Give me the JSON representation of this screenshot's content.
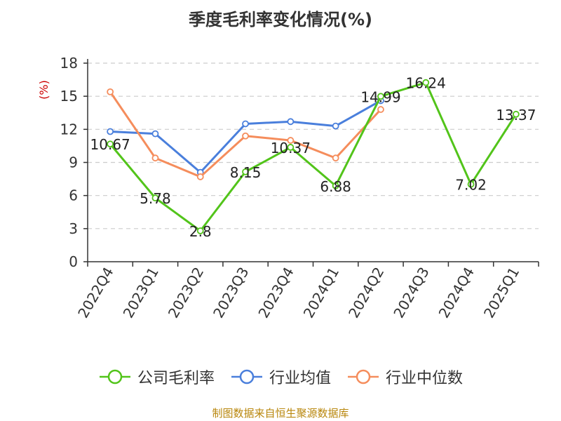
{
  "chart_data": {
    "type": "line",
    "title": "季度毛利率变化情况(%)",
    "ylabel": "(%)",
    "xlabel": "",
    "categories": [
      "2022Q4",
      "2023Q1",
      "2023Q2",
      "2023Q3",
      "2023Q4",
      "2024Q1",
      "2024Q2",
      "2024Q3",
      "2024Q4",
      "2025Q1"
    ],
    "ylim": [
      0,
      18
    ],
    "yticks": [
      0,
      3,
      6,
      9,
      12,
      15,
      18
    ],
    "grid": true,
    "legend_position": "bottom",
    "series": [
      {
        "name": "公司毛利率",
        "color": "#52c41a",
        "values": [
          10.67,
          5.78,
          2.8,
          8.15,
          10.37,
          6.88,
          14.99,
          16.24,
          7.02,
          13.37
        ],
        "labels": [
          "10.67",
          "5.78",
          "2.8",
          "8.15",
          "10.37",
          "6.88",
          "14.99",
          "16.24",
          "7.02",
          "13.37"
        ]
      },
      {
        "name": "行业均值",
        "color": "#4a7fdc",
        "values": [
          11.8,
          11.6,
          8.1,
          12.5,
          12.7,
          12.3,
          14.6,
          null,
          null,
          null
        ]
      },
      {
        "name": "行业中位数",
        "color": "#f58d5c",
        "values": [
          15.4,
          9.4,
          7.7,
          11.4,
          11.0,
          9.4,
          13.8,
          null,
          null,
          null
        ]
      }
    ]
  },
  "ylabel_color": "#cc0000",
  "source": "制图数据来自恒生聚源数据库"
}
